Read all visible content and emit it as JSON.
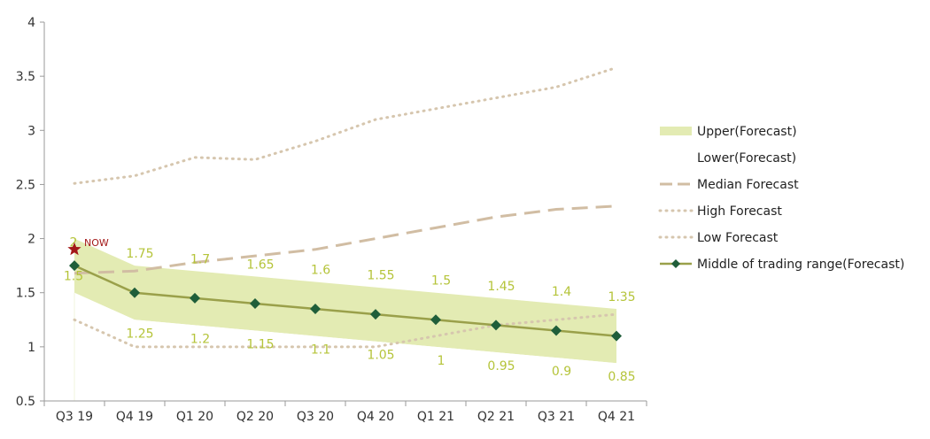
{
  "chart_data": {
    "type": "line",
    "categories": [
      "Q3 19",
      "Q4 19",
      "Q1 20",
      "Q2 20",
      "Q3 20",
      "Q4 20",
      "Q1 21",
      "Q2 21",
      "Q3 21",
      "Q4 21"
    ],
    "ylim": [
      0.5,
      4
    ],
    "yticks": [
      "0.5",
      "1",
      "1.5",
      "2",
      "2.5",
      "3",
      "3.5",
      "4"
    ],
    "grid": false,
    "legend_position": "right",
    "series": [
      {
        "name": "Upper(Forecast)",
        "kind": "band-upper",
        "color": "#e3ebb3",
        "values": [
          2,
          1.75,
          1.7,
          1.65,
          1.6,
          1.55,
          1.5,
          1.45,
          1.4,
          1.35
        ],
        "labels": [
          "2",
          "1.75",
          "1.7",
          "1.65",
          "1.6",
          "1.55",
          "1.5",
          "1.45",
          "1.4",
          "1.35"
        ]
      },
      {
        "name": "Lower(Forecast)",
        "kind": "band-lower",
        "color": "#ffffff",
        "values": [
          1.5,
          1.25,
          1.2,
          1.15,
          1.1,
          1.05,
          1,
          0.95,
          0.9,
          0.85
        ],
        "labels": [
          "1.5",
          "1.25",
          "1.2",
          "1.15",
          "1.1",
          "1.05",
          "1",
          "0.95",
          "0.9",
          "0.85"
        ]
      },
      {
        "name": "Median Forecast",
        "kind": "dashed",
        "color": "#d1bda3",
        "values": [
          1.68,
          1.7,
          1.78,
          1.84,
          1.9,
          2.0,
          2.1,
          2.2,
          2.27,
          2.3
        ]
      },
      {
        "name": "High Forecast",
        "kind": "dotted",
        "color": "#d6c6ae",
        "values": [
          2.51,
          2.58,
          2.75,
          2.73,
          2.9,
          3.1,
          3.2,
          3.3,
          3.4,
          3.58
        ]
      },
      {
        "name": "Low Forecast",
        "kind": "dotted",
        "color": "#d6c6ae",
        "values": [
          1.25,
          1.0,
          1.0,
          1.0,
          1.0,
          1.0,
          1.1,
          1.2,
          1.25,
          1.3
        ]
      },
      {
        "name": "Middle of trading range(Forecast)",
        "kind": "line-marker",
        "color": "#9aa04a",
        "marker_color": "#1f5e3a",
        "values": [
          1.75,
          1.5,
          1.45,
          1.4,
          1.35,
          1.3,
          1.25,
          1.2,
          1.15,
          1.1
        ]
      }
    ],
    "annotation": {
      "text": "NOW",
      "x_index": 0,
      "y": 1.9,
      "marker": "star",
      "color": "#a31818"
    }
  }
}
